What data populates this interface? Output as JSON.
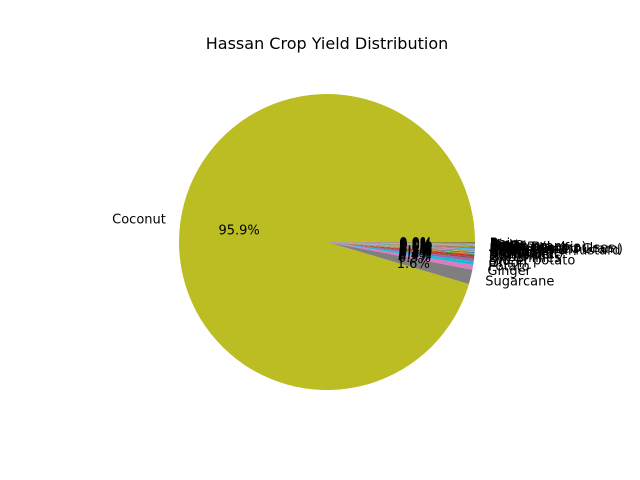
{
  "chart_data": {
    "type": "pie",
    "title": "Hassan Crop Yield Distribution",
    "autopct_format": "{v}%",
    "start_angle_deg": 0,
    "counterclock": true,
    "slices": [
      {
        "label": "Coconut",
        "value": 95.9,
        "color": "#bcbd22",
        "pct_text": "95.9"
      },
      {
        "label": "Sugarcane",
        "value": 1.6,
        "color": "#7f7f7f",
        "pct_text": "1.6"
      },
      {
        "label": "Ginger",
        "value": 0.5,
        "color": "#e377c2",
        "pct_text": "0.5"
      },
      {
        "label": "Potato",
        "value": 0.4,
        "color": "#17becf",
        "pct_text": "0.4"
      },
      {
        "label": "Onion",
        "value": 0.3,
        "color": "#9467bd",
        "pct_text": "0.3"
      },
      {
        "label": "Sweet potato",
        "value": 0.2,
        "color": "#8c564b",
        "pct_text": "0.2"
      },
      {
        "label": "Dry chillies",
        "value": 0.2,
        "color": "#d62728",
        "pct_text": "0.2"
      },
      {
        "label": "Garlic",
        "value": 0.1,
        "color": "#2ca02c",
        "pct_text": "0.1"
      },
      {
        "label": "Turmeric",
        "value": 0.1,
        "color": "#ff7f0e",
        "pct_text": "0.1"
      },
      {
        "label": "Sunflower",
        "value": 0.1,
        "color": "#1f77b4",
        "pct_text": "0.1"
      },
      {
        "label": "Groundnut",
        "value": 0.1,
        "color": "#bcbd22",
        "pct_text": "0.1"
      },
      {
        "label": "Cotton(lint)",
        "value": 0.1,
        "color": "#7f7f7f",
        "pct_text": "0.1"
      },
      {
        "label": "Soyabean",
        "value": 0.1,
        "color": "#e377c2",
        "pct_text": "0.1"
      },
      {
        "label": "Rapeseed &Mustard",
        "value": 0.1,
        "color": "#17becf",
        "pct_text": "0.1"
      },
      {
        "label": "Sesamum",
        "value": 0.05,
        "color": "#9467bd",
        "pct_text": "0.0"
      },
      {
        "label": "Castor seed",
        "value": 0.05,
        "color": "#8c564b",
        "pct_text": "0.0"
      },
      {
        "label": "Moong(Green Gram)",
        "value": 0.05,
        "color": "#d62728",
        "pct_text": "0.0"
      },
      {
        "label": "Urad",
        "value": 0.05,
        "color": "#2ca02c",
        "pct_text": "0.0"
      },
      {
        "label": "Other Kharif pulses",
        "value": 0.05,
        "color": "#ff7f0e",
        "pct_text": "0.0"
      },
      {
        "label": "Arhar/Tur",
        "value": 0.05,
        "color": "#1f77b4",
        "pct_text": "0.0"
      },
      {
        "label": "Cowpea(Lobia)",
        "value": 0.05,
        "color": "#bcbd22",
        "pct_text": "0.0"
      },
      {
        "label": "Horse-gram",
        "value": 0.05,
        "color": "#7f7f7f",
        "pct_text": "0.0"
      },
      {
        "label": "Gram",
        "value": 0.05,
        "color": "#e377c2",
        "pct_text": "0.0"
      },
      {
        "label": "Ragi",
        "value": 0.05,
        "color": "#17becf",
        "pct_text": "0.0"
      },
      {
        "label": "Maize",
        "value": 0.05,
        "color": "#9467bd",
        "pct_text": "0.0"
      },
      {
        "label": "Rice",
        "value": 0.05,
        "color": "#8c564b",
        "pct_text": "0.0"
      },
      {
        "label": "Jowar",
        "value": 0.05,
        "color": "#d62728",
        "pct_text": "0.0"
      },
      {
        "label": "Bajra",
        "value": 0.05,
        "color": "#2ca02c",
        "pct_text": "0.0"
      }
    ]
  }
}
